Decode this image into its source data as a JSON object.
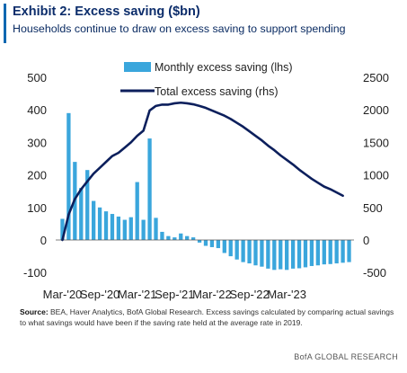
{
  "header": {
    "title": "Exhibit 2: Excess saving ($bn)",
    "subtitle": "Households continue to draw on excess saving to support spending"
  },
  "footer": {
    "source_label": "Source:",
    "source_text": " BEA, Haver Analytics, BofA Global Research. Excess savings calculated by comparing actual savings to what savings would have been if the saving rate held at the average rate in 2019.",
    "brand": "BofA GLOBAL RESEARCH"
  },
  "colors": {
    "bar": "#3aa6dc",
    "line": "#0c1f5c",
    "axis": "#555555"
  },
  "chart_data": {
    "type": "bar",
    "title": "",
    "x_tick_labels": [
      "Mar-'20",
      "Sep-'20",
      "Mar-'21",
      "Sep-'21",
      "Mar-'22",
      "Sep-'22",
      "Mar-'23"
    ],
    "y_left": {
      "ticks": [
        500,
        400,
        300,
        200,
        100,
        0,
        -100
      ],
      "range": [
        -110,
        500
      ]
    },
    "y_right": {
      "ticks": [
        2500,
        2000,
        1500,
        1000,
        500,
        0,
        -500
      ],
      "range": [
        -550,
        2500
      ]
    },
    "grid": false,
    "legend": "top-center",
    "series": [
      {
        "name": "Monthly excess saving (lhs)",
        "type": "bar",
        "axis": "left",
        "values": [
          65,
          390,
          240,
          160,
          215,
          120,
          100,
          88,
          80,
          72,
          62,
          70,
          178,
          62,
          312,
          68,
          25,
          12,
          8,
          20,
          12,
          8,
          -8,
          -18,
          -22,
          -25,
          -40,
          -50,
          -60,
          -68,
          -72,
          -78,
          -82,
          -88,
          -92,
          -90,
          -92,
          -88,
          -87,
          -84,
          -80,
          -78,
          -75,
          -74,
          -72,
          -70,
          -68
        ]
      },
      {
        "name": "Total excess saving (rhs)",
        "type": "line",
        "axis": "right",
        "points": [
          [
            0,
            0
          ],
          [
            1,
            390
          ],
          [
            2,
            630
          ],
          [
            3,
            780
          ],
          [
            4,
            900
          ],
          [
            5,
            1020
          ],
          [
            6,
            1110
          ],
          [
            7,
            1200
          ],
          [
            8,
            1290
          ],
          [
            9,
            1340
          ],
          [
            10,
            1420
          ],
          [
            11,
            1500
          ],
          [
            12,
            1600
          ],
          [
            13,
            1680
          ],
          [
            14,
            1990
          ],
          [
            15,
            2060
          ],
          [
            16,
            2080
          ],
          [
            17,
            2080
          ],
          [
            18,
            2100
          ],
          [
            19,
            2110
          ],
          [
            20,
            2100
          ],
          [
            21,
            2085
          ],
          [
            22,
            2060
          ],
          [
            23,
            2030
          ],
          [
            24,
            1990
          ],
          [
            25,
            1950
          ],
          [
            26,
            1910
          ],
          [
            27,
            1860
          ],
          [
            28,
            1800
          ],
          [
            29,
            1740
          ],
          [
            30,
            1670
          ],
          [
            31,
            1600
          ],
          [
            32,
            1530
          ],
          [
            33,
            1450
          ],
          [
            34,
            1380
          ],
          [
            35,
            1300
          ],
          [
            36,
            1230
          ],
          [
            37,
            1160
          ],
          [
            38,
            1080
          ],
          [
            39,
            1010
          ],
          [
            40,
            940
          ],
          [
            41,
            880
          ],
          [
            42,
            820
          ],
          [
            43,
            780
          ],
          [
            44,
            730
          ],
          [
            45,
            680
          ]
        ]
      }
    ]
  }
}
